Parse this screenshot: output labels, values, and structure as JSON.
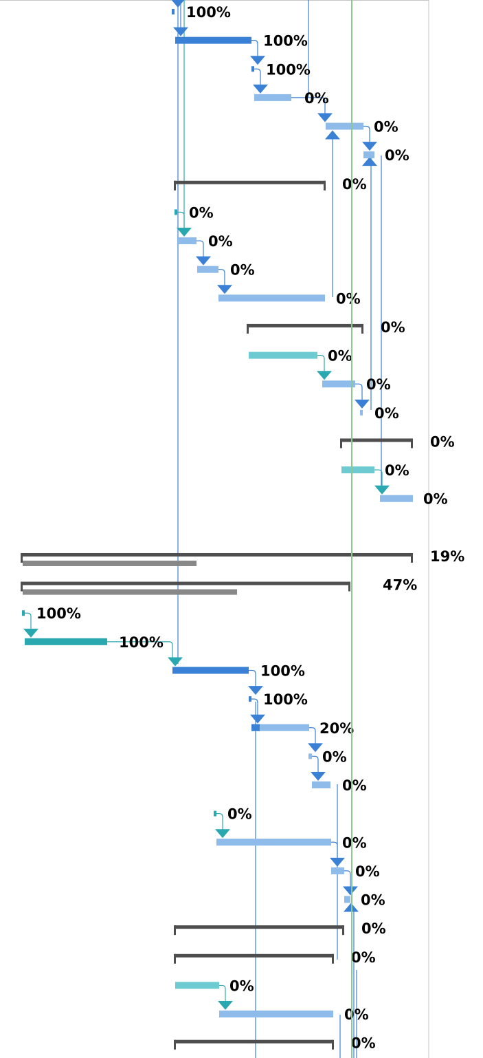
{
  "colors": {
    "critical": "#3a80d4",
    "normal": "#8ebbea",
    "progress_normal": "#3a80d4",
    "inactive": "#6ccad0",
    "inactive_arrow": "#2aa8b0",
    "summary": "#4e4e4e",
    "summary_progress": "#888888",
    "link": "#3a80d4",
    "link_teal": "#2aa8b0",
    "status_date": "#8cc98c",
    "grid_border": "#c4c4c4"
  },
  "gantt": {
    "rows": [
      {
        "kind": "milestone",
        "label": "100%"
      },
      {
        "kind": "task",
        "style": "critical",
        "label": "100%"
      },
      {
        "kind": "milestone",
        "label": "100%"
      },
      {
        "kind": "task",
        "style": "normal",
        "label": "0%"
      },
      {
        "kind": "task",
        "style": "normal",
        "label": "0%"
      },
      {
        "kind": "task",
        "style": "normal",
        "label": "0%"
      },
      {
        "kind": "summary",
        "label": "0%"
      },
      {
        "kind": "milestone",
        "label": "0%"
      },
      {
        "kind": "task",
        "style": "normal",
        "label": "0%"
      },
      {
        "kind": "task",
        "style": "normal",
        "label": "0%"
      },
      {
        "kind": "task",
        "style": "normal",
        "label": "0%"
      },
      {
        "kind": "summary",
        "label": "0%"
      },
      {
        "kind": "task",
        "style": "inactive",
        "label": "0%"
      },
      {
        "kind": "task",
        "style": "normal",
        "label": "0%"
      },
      {
        "kind": "milestone",
        "label": "0%"
      },
      {
        "kind": "summary",
        "label": "0%"
      },
      {
        "kind": "task",
        "style": "inactive",
        "label": "0%"
      },
      {
        "kind": "task",
        "style": "normal",
        "label": "0%"
      },
      {
        "kind": "blank",
        "label": ""
      },
      {
        "kind": "summary",
        "label": "19%"
      },
      {
        "kind": "summary",
        "label": "47%"
      },
      {
        "kind": "milestone",
        "label": "100%"
      },
      {
        "kind": "task",
        "style": "teal",
        "label": "100%"
      },
      {
        "kind": "task",
        "style": "critical",
        "label": "100%"
      },
      {
        "kind": "milestone",
        "label": "100%"
      },
      {
        "kind": "task",
        "style": "normal",
        "label": "20%"
      },
      {
        "kind": "milestone",
        "label": "0%"
      },
      {
        "kind": "task",
        "style": "normal",
        "label": "0%"
      },
      {
        "kind": "milestone",
        "label": "0%"
      },
      {
        "kind": "task",
        "style": "normal",
        "label": "0%"
      },
      {
        "kind": "task",
        "style": "normal",
        "label": "0%"
      },
      {
        "kind": "task",
        "style": "normal",
        "label": "0%"
      },
      {
        "kind": "summary",
        "label": "0%"
      },
      {
        "kind": "summary",
        "label": "0%"
      },
      {
        "kind": "task",
        "style": "inactive",
        "label": "0%"
      },
      {
        "kind": "task",
        "style": "normal",
        "label": "0%"
      },
      {
        "kind": "summary",
        "label": "0%"
      }
    ]
  }
}
